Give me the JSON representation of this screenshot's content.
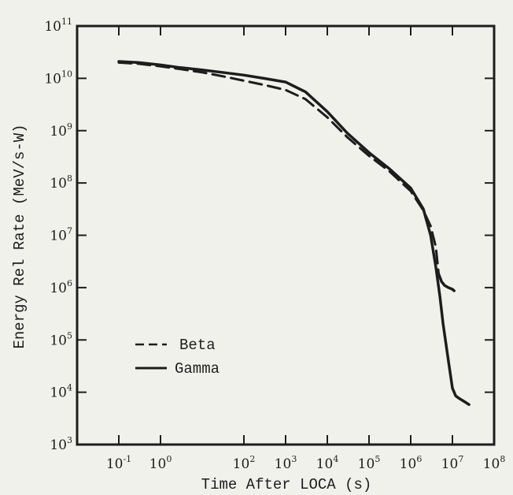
{
  "chart_data": {
    "type": "line",
    "title": "",
    "xlabel": "Time After LOCA (s)",
    "ylabel": "Energy Rel Rate (MeV/s-W)",
    "xscale": "log",
    "yscale": "log",
    "xlim": [
      0.01,
      100000000
    ],
    "ylim": [
      1000,
      100000000000
    ],
    "x_ticks": [
      {
        "base": "10",
        "exp": "-1",
        "value": 0.1
      },
      {
        "base": "10",
        "exp": "0",
        "value": 1
      },
      {
        "base": "10",
        "exp": "2",
        "value": 100
      },
      {
        "base": "10",
        "exp": "3",
        "value": 1000
      },
      {
        "base": "10",
        "exp": "4",
        "value": 10000
      },
      {
        "base": "10",
        "exp": "5",
        "value": 100000
      },
      {
        "base": "10",
        "exp": "6",
        "value": 1000000
      },
      {
        "base": "10",
        "exp": "7",
        "value": 10000000
      },
      {
        "base": "10",
        "exp": "8",
        "value": 100000000
      }
    ],
    "y_ticks": [
      {
        "base": "10",
        "exp": "3",
        "value": 1000
      },
      {
        "base": "10",
        "exp": "4",
        "value": 10000
      },
      {
        "base": "10",
        "exp": "5",
        "value": 100000
      },
      {
        "base": "10",
        "exp": "6",
        "value": 1000000
      },
      {
        "base": "10",
        "exp": "7",
        "value": 10000000
      },
      {
        "base": "10",
        "exp": "8",
        "value": 100000000
      },
      {
        "base": "10",
        "exp": "9",
        "value": 1000000000
      },
      {
        "base": "10",
        "exp": "10",
        "value": 10000000000
      },
      {
        "base": "10",
        "exp": "11",
        "value": 100000000000
      }
    ],
    "legend_position": "bottom-left",
    "grid": false,
    "series": [
      {
        "name": "Beta",
        "style": "dashed",
        "x": [
          0.1,
          0.3,
          1,
          3,
          10,
          30,
          100,
          300,
          1000,
          3000,
          10000,
          30000,
          100000,
          300000,
          1000000,
          2000000,
          3000000,
          4000000,
          4700000
        ],
        "y": [
          20000000000,
          19000000000,
          17000000000,
          15000000000,
          13000000000,
          11000000000,
          9000000000,
          7500000000,
          6000000000,
          4000000000,
          1800000000,
          750000000,
          330000000,
          170000000,
          70000000,
          30000000,
          15000000,
          6000000,
          1800000
        ]
      },
      {
        "name": "Gamma",
        "style": "solid",
        "x": [
          0.1,
          0.3,
          1,
          3,
          10,
          30,
          100,
          300,
          1000,
          3000,
          10000,
          30000,
          100000,
          300000,
          1000000,
          2000000,
          3000000,
          4000000,
          5000000,
          6000000,
          8000000,
          10000000,
          12000000,
          15000000,
          20000000,
          25000000
        ],
        "y": [
          21000000000,
          20000000000,
          18000000000,
          16000000000,
          14500000000,
          13000000000,
          11500000000,
          10000000000,
          8500000000,
          5500000000,
          2300000000,
          900000000,
          380000000,
          190000000,
          80000000,
          32000000,
          10000000,
          2500000,
          700000,
          200000,
          40000,
          12000,
          8500,
          7500,
          6500,
          5800
        ]
      },
      {
        "name": "",
        "style": "solid",
        "x": [
          4700000,
          5500000,
          6500000,
          8000000,
          10000000,
          11000000
        ],
        "y": [
          1800000,
          1300000,
          1100000,
          1000000,
          930000,
          870000
        ]
      }
    ]
  }
}
